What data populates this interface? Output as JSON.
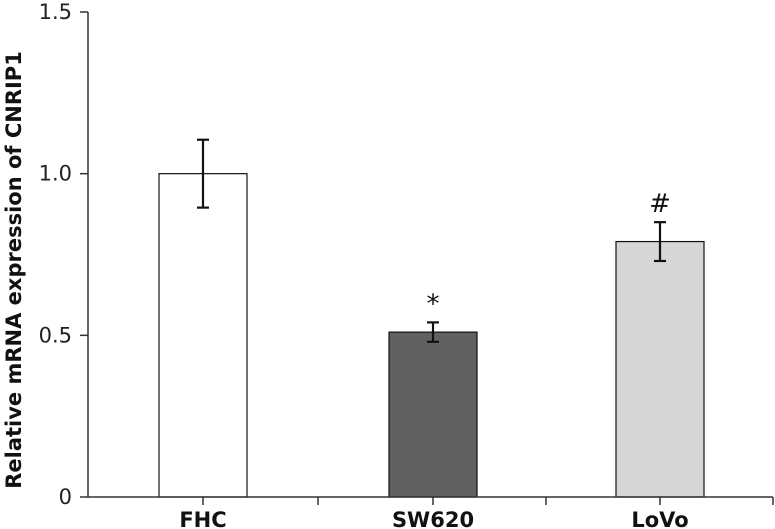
{
  "chart_data": {
    "type": "bar",
    "title": "",
    "xlabel": "",
    "ylabel": "Relative mRNA expression of CNRIP1",
    "ylim": [
      0,
      1.5
    ],
    "yticks": [
      0,
      0.5,
      1.0,
      1.5
    ],
    "ytick_labels": [
      "0",
      "0.5",
      "1.0",
      "1.5"
    ],
    "grid": false,
    "categories": [
      "FHC",
      "SW620",
      "LoVo"
    ],
    "values": [
      1.0,
      0.51,
      0.79
    ],
    "error": [
      0.105,
      0.03,
      0.06
    ],
    "annotations": [
      "",
      "*",
      "#"
    ],
    "bar_colors": [
      "#ffffff",
      "#616161",
      "#d6d6d6"
    ],
    "bar_edge_color": "#111111"
  }
}
